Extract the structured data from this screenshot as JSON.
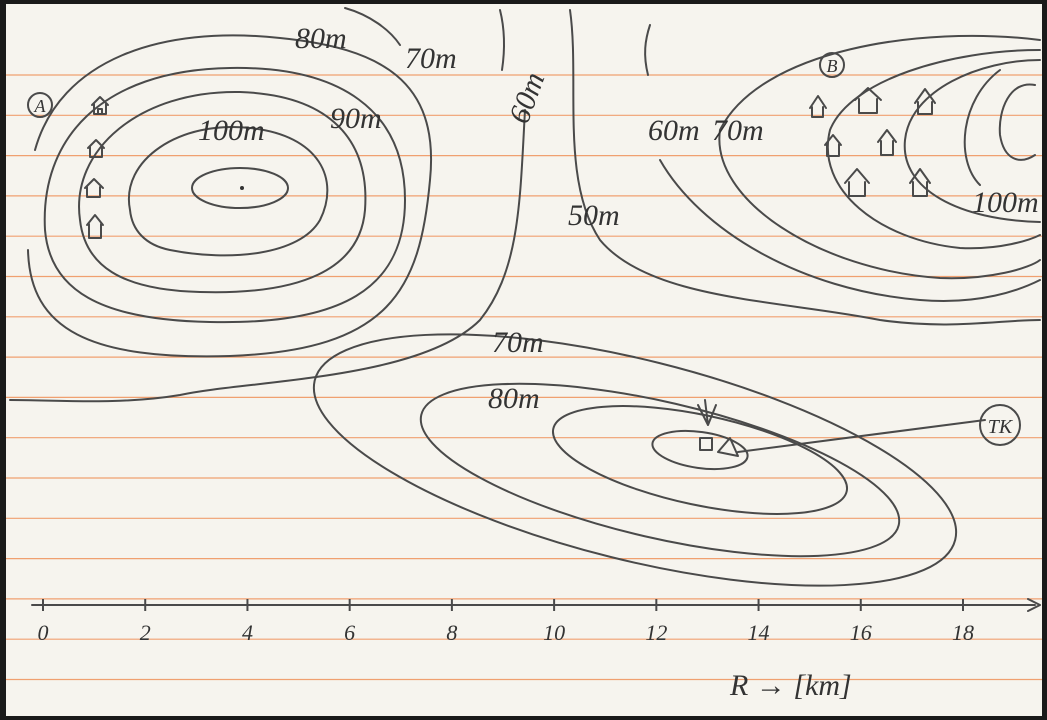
{
  "map": {
    "contour_labels": [
      "80m",
      "70m",
      "60m",
      "90m",
      "100m",
      "60m",
      "70m",
      "50m",
      "100m",
      "70m",
      "80m"
    ],
    "markers": [
      "A",
      "B",
      "TK"
    ],
    "axis": {
      "label": "R → [km]",
      "ticks": [
        0,
        2,
        4,
        6,
        8,
        10,
        12,
        14,
        16,
        18
      ]
    }
  }
}
